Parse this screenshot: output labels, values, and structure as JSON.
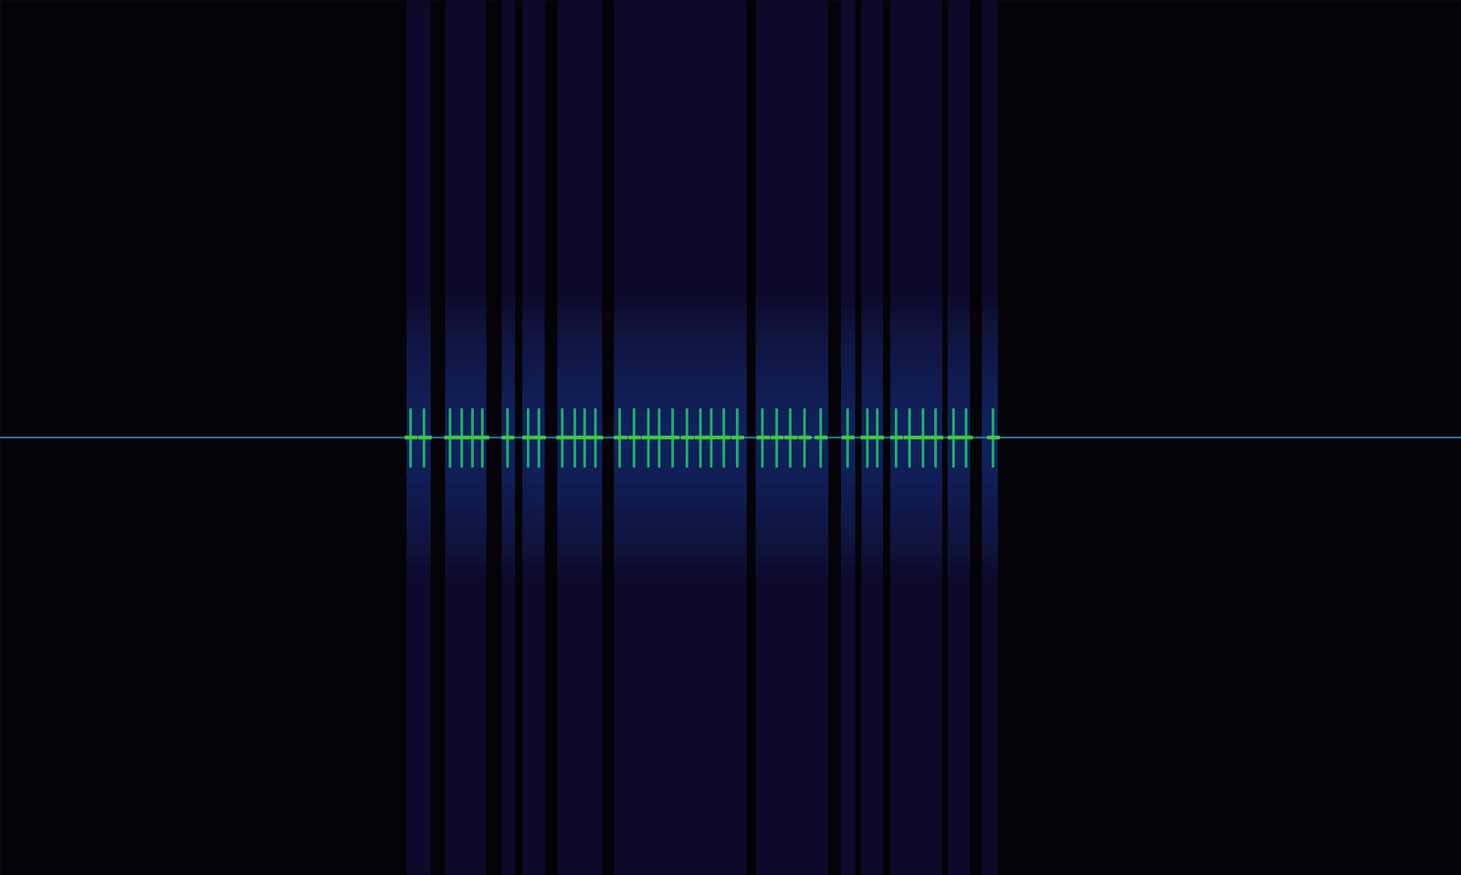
{
  "chart_data": {
    "type": "spectrogram",
    "xlim": [
      0,
      1568
    ],
    "ylim": [
      -470,
      470
    ],
    "carrier": 0,
    "tick_labels": false,
    "grid": false,
    "color": "#2a7ab0",
    "bursts": [
      [
        436,
        462
      ],
      [
        478,
        522
      ],
      [
        538,
        553
      ],
      [
        561,
        585
      ],
      [
        598,
        646
      ],
      [
        659,
        801
      ],
      [
        811,
        889
      ],
      [
        902,
        918
      ],
      [
        925,
        948
      ],
      [
        955,
        1011
      ],
      [
        1017,
        1041
      ],
      [
        1054,
        1071
      ]
    ],
    "burst_height": 150,
    "pulses": [
      440,
      455,
      483,
      495,
      507,
      517,
      544,
      566,
      578,
      603,
      616,
      627,
      639,
      665,
      680,
      695,
      707,
      721,
      737,
      751,
      763,
      776,
      791,
      818,
      833,
      848,
      863,
      880,
      909,
      930,
      941,
      961,
      976,
      990,
      1004,
      1023,
      1036,
      1065
    ],
    "pulse_height": 32
  }
}
